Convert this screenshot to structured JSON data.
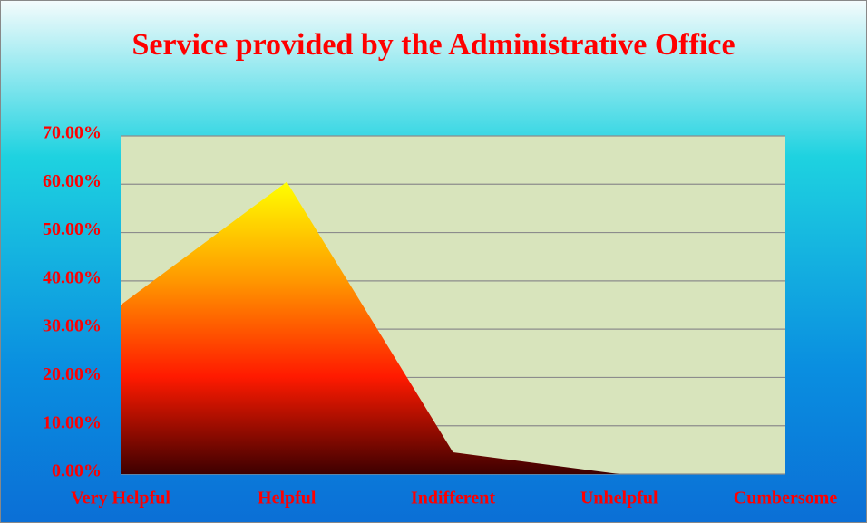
{
  "chart_data": {
    "type": "area",
    "title": "Service provided by the Administrative Office",
    "categories": [
      "Very Helpful",
      "Helpful",
      "Indifferent",
      "Unhelpful",
      "Cumbersome"
    ],
    "values": [
      35,
      60.5,
      4.5,
      0,
      0
    ],
    "gradient": [
      "#ffff00",
      "#ff9900",
      "#ff1a00",
      "#3d0000"
    ],
    "ylim": [
      0,
      70
    ],
    "yticks": [
      {
        "value": 0,
        "label": "0.00%"
      },
      {
        "value": 10,
        "label": "10.00%"
      },
      {
        "value": 20,
        "label": "20.00%"
      },
      {
        "value": 30,
        "label": "30.00%"
      },
      {
        "value": 40,
        "label": "40.00%"
      },
      {
        "value": 50,
        "label": "50.00%"
      },
      {
        "value": 60,
        "label": "60.00%"
      },
      {
        "value": 70,
        "label": "70.00%"
      }
    ],
    "grid": true
  }
}
